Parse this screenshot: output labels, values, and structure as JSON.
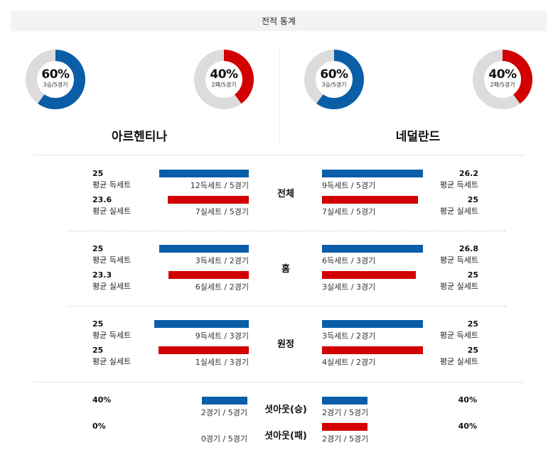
{
  "title": "전적 통계",
  "teams": {
    "left": {
      "name": "아르헨티나",
      "win": {
        "pct": "60%",
        "record": "3승/5경기",
        "value": 0.6
      },
      "loss": {
        "pct": "40%",
        "record": "2패/5경기",
        "value": 0.4
      }
    },
    "right": {
      "name": "네덜란드",
      "win": {
        "pct": "60%",
        "record": "3승/5경기",
        "value": 0.6
      },
      "loss": {
        "pct": "40%",
        "record": "2패/5경기",
        "value": 0.4
      }
    }
  },
  "labels": {
    "scored": "평균 득세트",
    "conceded": "평균 실세트"
  },
  "sections": [
    {
      "name": "전체",
      "left": {
        "scored": {
          "value": "25",
          "caption": "12득세트 / 5경기",
          "fill": 0.95
        },
        "conceded": {
          "value": "23.6",
          "caption": "7실세트 / 5경기",
          "fill": 0.9
        }
      },
      "right": {
        "scored": {
          "value": "26.2",
          "caption": "9득세트 / 5경기",
          "fill": 1.0
        },
        "conceded": {
          "value": "25",
          "caption": "7실세트 / 5경기",
          "fill": 0.95
        }
      }
    },
    {
      "name": "홈",
      "left": {
        "scored": {
          "value": "25",
          "caption": "3득세트 / 2경기",
          "fill": 0.95
        },
        "conceded": {
          "value": "23.3",
          "caption": "6실세트 / 2경기",
          "fill": 0.89
        }
      },
      "right": {
        "scored": {
          "value": "26.8",
          "caption": "6득세트 / 3경기",
          "fill": 1.0
        },
        "conceded": {
          "value": "25",
          "caption": "3실세트 / 3경기",
          "fill": 0.93
        }
      }
    },
    {
      "name": "원정",
      "left": {
        "scored": {
          "value": "25",
          "caption": "9득세트 / 3경기",
          "fill": 1.0
        },
        "conceded": {
          "value": "25",
          "caption": "1실세트 / 3경기",
          "fill": 1.0
        }
      },
      "right": {
        "scored": {
          "value": "25",
          "caption": "3득세트 / 2경기",
          "fill": 1.0
        },
        "conceded": {
          "value": "25",
          "caption": "4실세트 / 2경기",
          "fill": 1.0
        }
      }
    }
  ],
  "shutout": [
    {
      "name": "셧아웃(승)",
      "left": {
        "pct": "40%",
        "caption": "2경기 / 5경기",
        "fill": 0.4
      },
      "right": {
        "pct": "40%",
        "caption": "2경기 / 5경기",
        "fill": 0.4
      }
    },
    {
      "name": "셧아웃(패)",
      "left": {
        "pct": "0%",
        "caption": "0경기 / 5경기",
        "fill": 0.0
      },
      "right": {
        "pct": "40%",
        "caption": "2경기 / 5경기",
        "fill": 0.4
      }
    }
  ],
  "colors": {
    "blue": "#0a5ea8",
    "red": "#d20000",
    "track": "#dcdcdc"
  }
}
